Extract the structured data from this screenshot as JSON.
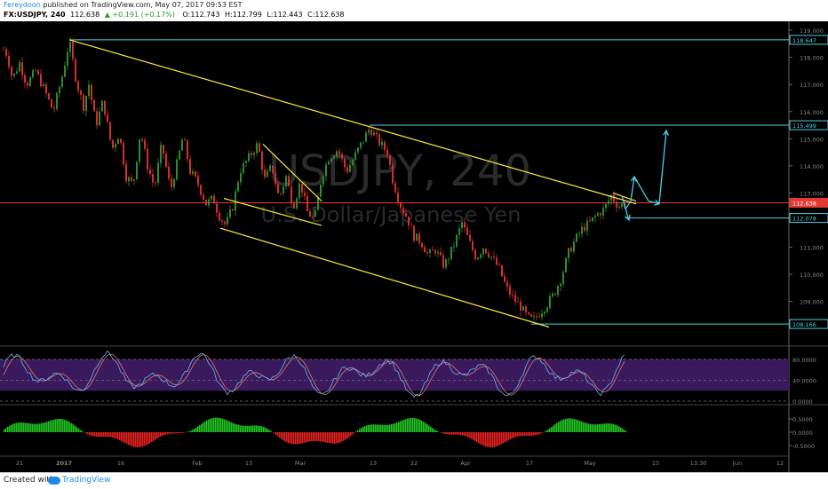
{
  "header": {
    "author": "Fereydoon",
    "published_text": "published on TradingView.com, May 07, 2017 09:53 EST",
    "symbol": "FX:USDJPY, 240",
    "last": "112.638",
    "change": "+0.191 (+0.17%)",
    "open": "O:112.743",
    "high": "H:112.799",
    "low": "L:112.443",
    "close": "C:112.638"
  },
  "footer": {
    "created_with": "Created with",
    "brand": "TradingView"
  },
  "watermark": {
    "symbol": "USDJPY, 240",
    "description": "U.S. Dollar/Japanese Yen"
  },
  "chart_data": {
    "type": "candlestick",
    "price_axis": {
      "range": [
        107.35,
        119.2
      ],
      "ticks": [
        "119.000",
        "118.000",
        "117.000",
        "116.000",
        "115.000",
        "114.000",
        "113.000",
        "112.000",
        "111.000",
        "110.000",
        "109.000"
      ]
    },
    "time_axis": {
      "labels": [
        "21",
        "2017",
        "16",
        "Feb",
        "13",
        "Mar",
        "13",
        "22",
        "Apr",
        "17",
        "May",
        "15",
        "13:30",
        "Jun",
        "12"
      ]
    },
    "horizontal_levels": [
      {
        "price": 118.647,
        "label": "118.647",
        "color": "#4dd0e1"
      },
      {
        "price": 115.499,
        "label": "115.499",
        "color": "#4dd0e1"
      },
      {
        "price": 112.638,
        "label": "112.638",
        "color": "#e53935"
      },
      {
        "price": 112.078,
        "label": "112.078",
        "color": "#4dd0e1"
      },
      {
        "price": 108.166,
        "label": "108.166",
        "color": "#4dd0e1"
      }
    ],
    "price_path": [
      [
        0,
        118.5
      ],
      [
        8,
        118.1
      ],
      [
        14,
        117.2
      ],
      [
        22,
        117.8
      ],
      [
        30,
        117.0
      ],
      [
        40,
        117.5
      ],
      [
        50,
        116.8
      ],
      [
        60,
        116.0
      ],
      [
        70,
        117.3
      ],
      [
        78,
        118.6
      ],
      [
        86,
        117.1
      ],
      [
        94,
        116.2
      ],
      [
        100,
        117.0
      ],
      [
        108,
        115.5
      ],
      [
        116,
        116.4
      ],
      [
        126,
        114.6
      ],
      [
        134,
        115.2
      ],
      [
        142,
        113.6
      ],
      [
        150,
        113.3
      ],
      [
        158,
        115.3
      ],
      [
        166,
        114.0
      ],
      [
        174,
        113.2
      ],
      [
        182,
        114.8
      ],
      [
        192,
        113.1
      ],
      [
        200,
        114.2
      ],
      [
        206,
        115.1
      ],
      [
        214,
        113.8
      ],
      [
        222,
        113.4
      ],
      [
        232,
        112.6
      ],
      [
        240,
        112.8
      ],
      [
        246,
        112.2
      ],
      [
        254,
        111.8
      ],
      [
        262,
        112.5
      ],
      [
        270,
        113.8
      ],
      [
        280,
        114.3
      ],
      [
        290,
        114.8
      ],
      [
        298,
        113.5
      ],
      [
        306,
        114.0
      ],
      [
        314,
        112.8
      ],
      [
        322,
        113.6
      ],
      [
        330,
        112.5
      ],
      [
        338,
        113.4
      ],
      [
        346,
        112.3
      ],
      [
        354,
        112.0
      ],
      [
        362,
        113.6
      ],
      [
        370,
        114.3
      ],
      [
        380,
        114.6
      ],
      [
        390,
        113.8
      ],
      [
        400,
        114.4
      ],
      [
        408,
        114.9
      ],
      [
        416,
        115.4
      ],
      [
        426,
        114.9
      ],
      [
        436,
        114.5
      ],
      [
        442,
        113.5
      ],
      [
        450,
        112.6
      ],
      [
        458,
        112.1
      ],
      [
        466,
        111.4
      ],
      [
        474,
        111.2
      ],
      [
        482,
        110.7
      ],
      [
        490,
        110.9
      ],
      [
        500,
        110.3
      ],
      [
        510,
        111.0
      ],
      [
        520,
        111.9
      ],
      [
        528,
        111.2
      ],
      [
        536,
        110.6
      ],
      [
        544,
        111.0
      ],
      [
        552,
        110.7
      ],
      [
        562,
        110.2
      ],
      [
        570,
        109.5
      ],
      [
        578,
        109.1
      ],
      [
        586,
        108.8
      ],
      [
        594,
        108.4
      ],
      [
        600,
        108.3
      ],
      [
        608,
        108.6
      ],
      [
        616,
        108.9
      ],
      [
        624,
        109.3
      ],
      [
        632,
        109.9
      ],
      [
        640,
        110.8
      ],
      [
        648,
        111.3
      ],
      [
        656,
        111.7
      ],
      [
        664,
        111.9
      ],
      [
        672,
        112.2
      ],
      [
        680,
        112.4
      ],
      [
        688,
        112.9
      ],
      [
        696,
        112.5
      ],
      [
        704,
        112.64
      ]
    ],
    "trend_lines": [
      {
        "from": [
          78,
          118.65
        ],
        "to": [
          716,
          112.6
        ],
        "color": "#ffeb3b"
      },
      {
        "from": [
          248,
          111.7
        ],
        "to": [
          618,
          108.05
        ],
        "color": "#ffeb3b"
      },
      {
        "from": [
          296,
          114.8
        ],
        "to": [
          362,
          112.7
        ],
        "color": "#ffeb3b"
      },
      {
        "from": [
          252,
          112.8
        ],
        "to": [
          362,
          111.8
        ],
        "color": "#ffeb3b"
      },
      {
        "from": [
          690,
          113.0
        ],
        "to": [
          716,
          112.7
        ],
        "color": "#ffeb3b"
      }
    ],
    "projection_arrows": [
      [
        [
          700,
          112.9
        ],
        [
          706,
          112.2
        ],
        [
          708,
          112.0
        ]
      ],
      [
        [
          704,
          112.4
        ],
        [
          710,
          112.7
        ],
        [
          714,
          113.6
        ]
      ],
      [
        [
          714,
          113.6
        ],
        [
          730,
          112.7
        ],
        [
          742,
          112.6
        ]
      ],
      [
        [
          742,
          112.6
        ],
        [
          750,
          115.3
        ]
      ]
    ],
    "stochastic": {
      "levels": [
        {
          "value": 80,
          "label": "80.0000"
        },
        {
          "value": 40,
          "label": "40.0000"
        },
        {
          "value": 0,
          "label": "0.0000"
        }
      ],
      "band_color": "#3a1a5c"
    },
    "macd": {
      "levels": [
        {
          "value": 0.5,
          "label": "0.5000"
        },
        {
          "value": 0,
          "label": "0.0000"
        },
        {
          "value": -0.5,
          "label": "-0.5000"
        }
      ]
    }
  }
}
